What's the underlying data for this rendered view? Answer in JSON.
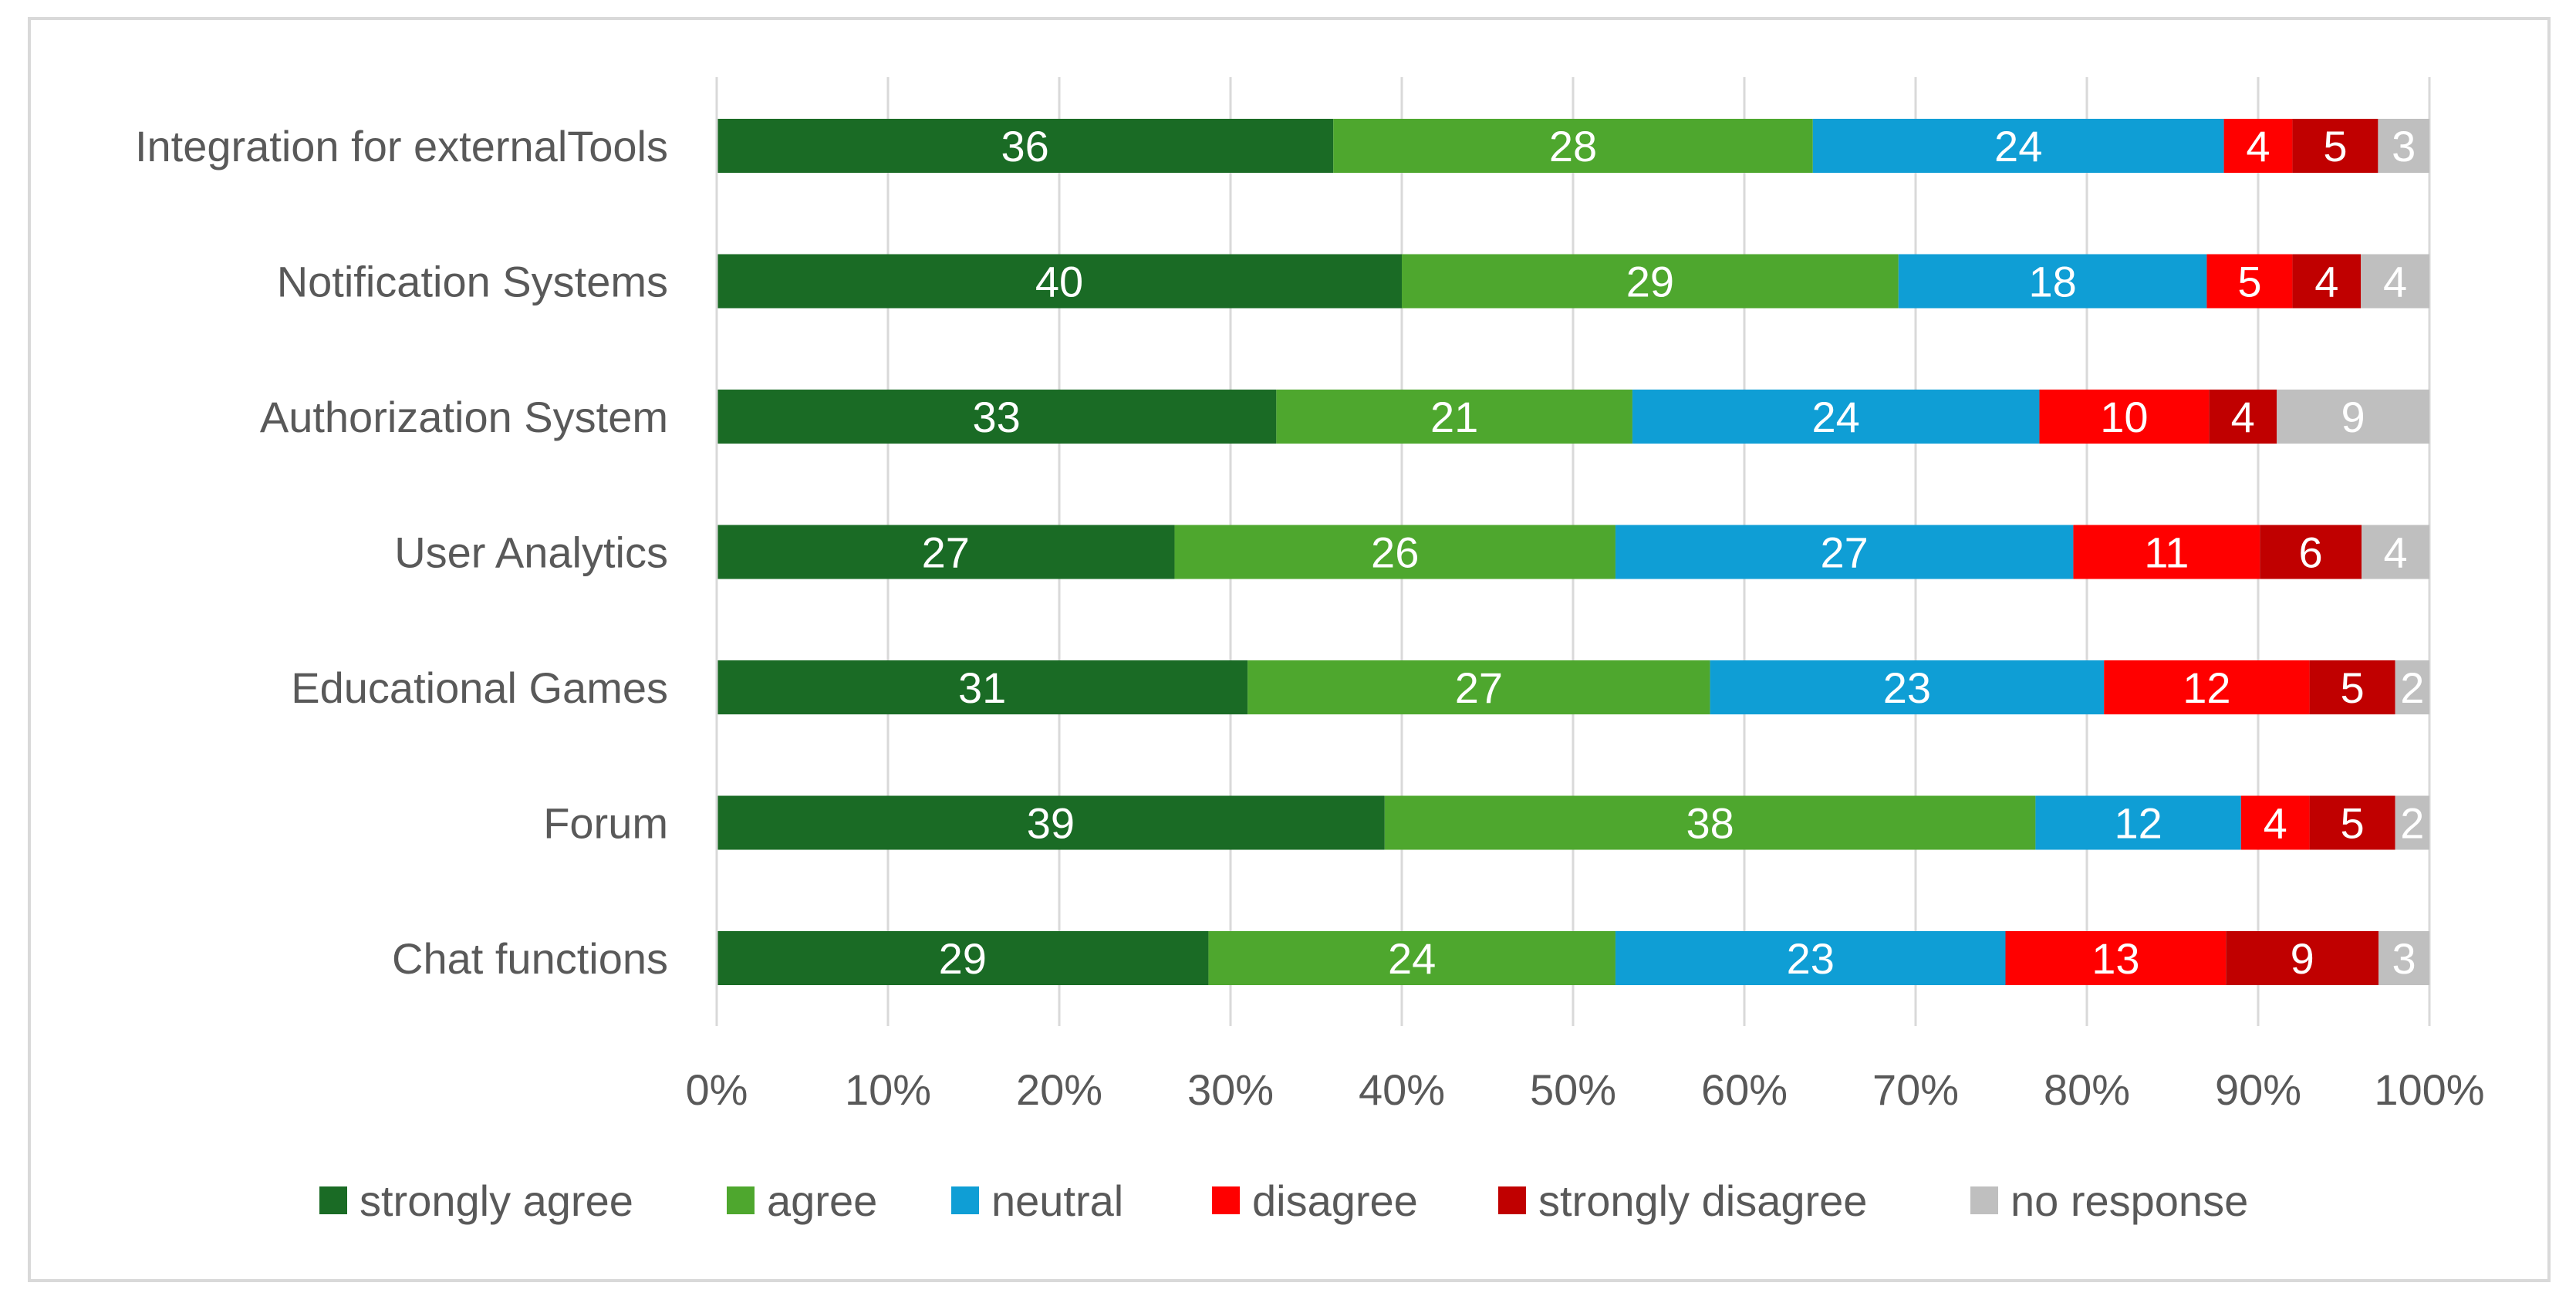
{
  "chart_data": {
    "type": "bar",
    "orientation": "horizontal",
    "stacked": "percent",
    "title": "",
    "xlabel": "",
    "ylabel": "",
    "xlim": [
      0,
      100
    ],
    "x_ticks": [
      "0%",
      "10%",
      "20%",
      "30%",
      "40%",
      "50%",
      "60%",
      "70%",
      "80%",
      "90%",
      "100%"
    ],
    "grid": "vertical",
    "legend_position": "bottom",
    "categories": [
      "Integration for externalTools",
      "Notification Systems",
      "Authorization System",
      "User Analytics",
      "Educational Games",
      "Forum",
      "Chat functions"
    ],
    "series": [
      {
        "name": "strongly agree",
        "color": "#1a6b25",
        "values": [
          36,
          40,
          33,
          27,
          31,
          39,
          29
        ]
      },
      {
        "name": "agree",
        "color": "#4ea72e",
        "values": [
          28,
          29,
          21,
          26,
          27,
          38,
          24
        ]
      },
      {
        "name": "neutral",
        "color": "#0f9ed5",
        "values": [
          24,
          18,
          24,
          27,
          23,
          12,
          23
        ]
      },
      {
        "name": "disagree",
        "color": "#ff0000",
        "values": [
          4,
          5,
          10,
          11,
          12,
          4,
          13
        ]
      },
      {
        "name": "strongly disagree",
        "color": "#c00000",
        "values": [
          5,
          4,
          4,
          6,
          5,
          5,
          9
        ]
      },
      {
        "name": "no response",
        "color": "#bfbfbf",
        "values": [
          3,
          4,
          9,
          4,
          2,
          2,
          3
        ]
      }
    ]
  }
}
